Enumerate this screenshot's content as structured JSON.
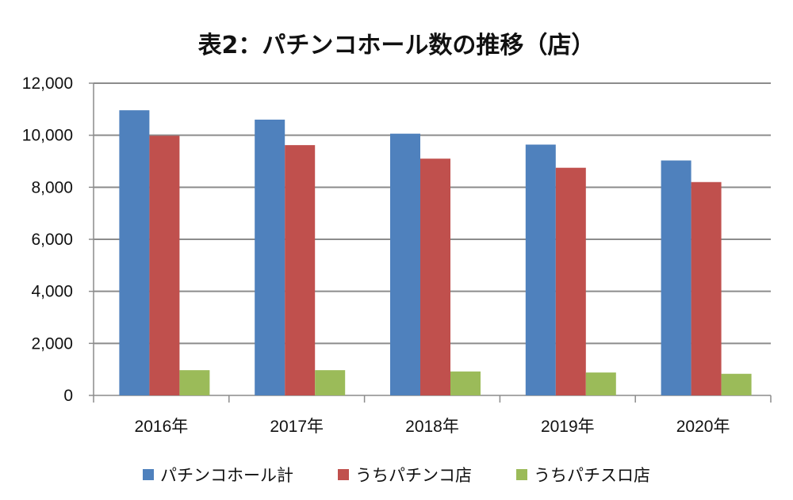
{
  "chart_data": {
    "type": "bar",
    "title": "表2：パチンコホール数の推移（店）",
    "xlabel": "",
    "ylabel": "",
    "ylim": [
      0,
      12000
    ],
    "yticks": [
      "0",
      "2,000",
      "4,000",
      "6,000",
      "8,000",
      "10,000",
      "12,000"
    ],
    "categories": [
      "2016年",
      "2017年",
      "2018年",
      "2019年",
      "2020年"
    ],
    "series": [
      {
        "name": "パチンコホール計",
        "color": "#4f81bd",
        "values": [
          10960,
          10600,
          10060,
          9640,
          9030
        ]
      },
      {
        "name": "うちパチンコ店",
        "color": "#c0504d",
        "values": [
          9980,
          9620,
          9100,
          8750,
          8200
        ]
      },
      {
        "name": "うちパチスロ店",
        "color": "#9bbb59",
        "values": [
          970,
          970,
          920,
          880,
          830
        ]
      }
    ],
    "grid": true,
    "legend": "bottom"
  }
}
